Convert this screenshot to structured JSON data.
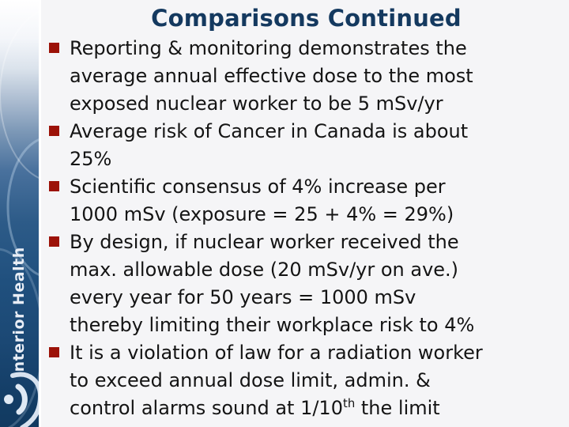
{
  "slide": {
    "title": "Comparisons Continued",
    "bullets": [
      {
        "lines": [
          [
            {
              "t": "Reporting & monitoring demonstrates the"
            }
          ],
          [
            {
              "t": "average annual effective dose to the most"
            }
          ],
          [
            {
              "t": "exposed nuclear worker to be 5 mSv/yr"
            }
          ]
        ]
      },
      {
        "lines": [
          [
            {
              "t": "Average risk of Cancer in Canada is about"
            }
          ],
          [
            {
              "t": "25%"
            }
          ]
        ]
      },
      {
        "lines": [
          [
            {
              "t": "Scientific consensus of 4% increase per"
            }
          ],
          [
            {
              "t": "1000 mSv (exposure = 25 + 4% = 29%)"
            }
          ]
        ]
      },
      {
        "lines": [
          [
            {
              "t": "By design, if nuclear worker received the"
            }
          ],
          [
            {
              "t": "max. allowable dose (20 mSv/yr on ave.)"
            }
          ],
          [
            {
              "t": "every year for 50 years = 1000 mSv"
            }
          ],
          [
            {
              "t": "thereby limiting their workplace risk to 4%"
            }
          ]
        ]
      },
      {
        "lines": [
          [
            {
              "t": "It is a violation of law for a radiation worker"
            }
          ],
          [
            {
              "t": "to exceed annual dose limit, admin. &"
            }
          ],
          [
            {
              "t": "control alarms sound at 1/10"
            },
            {
              "t": "th",
              "sup": true
            },
            {
              "t": " the limit"
            }
          ]
        ]
      }
    ]
  },
  "sidebar": {
    "brand": "Interior Health",
    "logo_icon": "interior-health-figure-logo"
  },
  "colors": {
    "title_text": "#14395f",
    "body_text": "#141414",
    "bullet_marker": "#9c1208",
    "slide_background": "#f5f5f7",
    "sidebar_navy": "#1c4a77",
    "brand_text": "#e9eef6"
  }
}
